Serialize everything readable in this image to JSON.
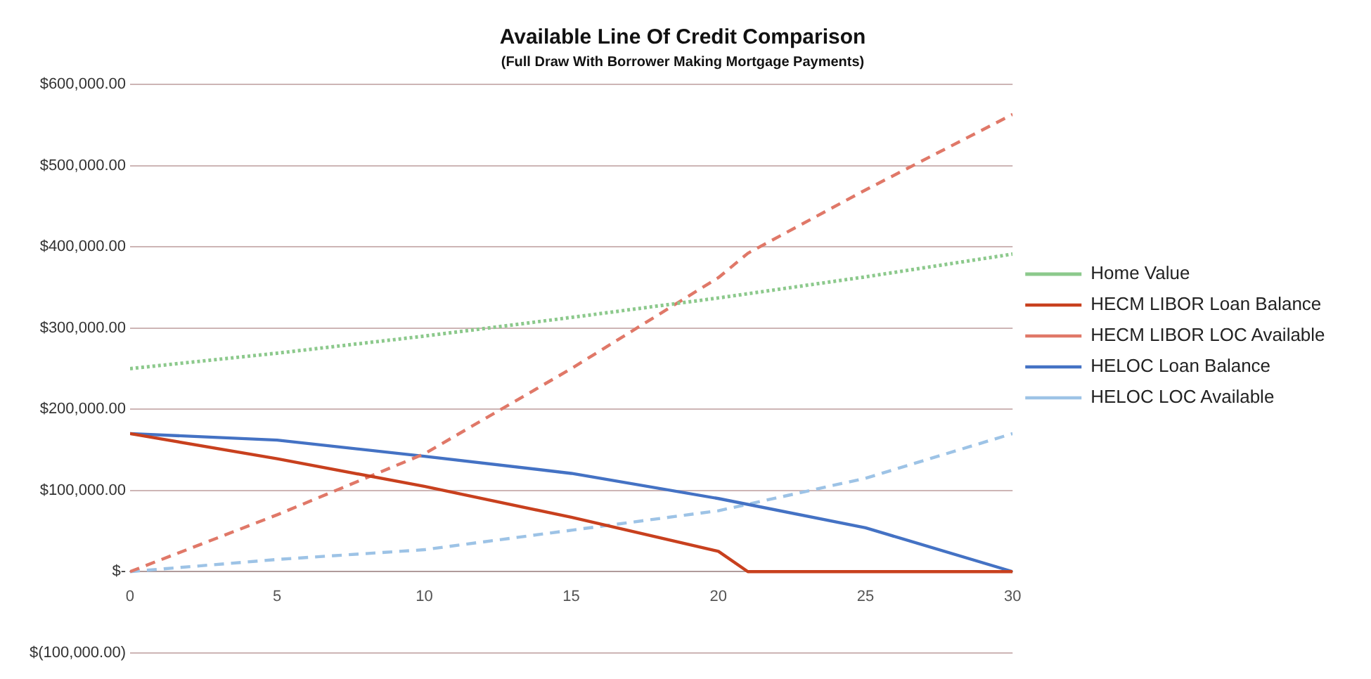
{
  "chart_data": {
    "type": "line",
    "title": "Available Line Of Credit Comparison",
    "subtitle": "(Full Draw With Borrower Making Mortgage Payments)",
    "xlim": [
      0,
      30
    ],
    "xticks": [
      0,
      5,
      10,
      15,
      20,
      25,
      30
    ],
    "ylim": [
      -100000,
      600000
    ],
    "yticks": [
      {
        "value": -100000,
        "label": "$(100,000.00)"
      },
      {
        "value": 0,
        "label": "$-"
      },
      {
        "value": 100000,
        "label": "$100,000.00"
      },
      {
        "value": 200000,
        "label": "$200,000.00"
      },
      {
        "value": 300000,
        "label": "$300,000.00"
      },
      {
        "value": 400000,
        "label": "$400,000.00"
      },
      {
        "value": 500000,
        "label": "$500,000.00"
      },
      {
        "value": 600000,
        "label": "$600,000.00"
      }
    ],
    "grid": "y",
    "legend": "right",
    "marker": "none",
    "series": [
      {
        "name": "Home Value",
        "color": "#8cc98c",
        "line_style": "dotted",
        "x": [
          0,
          5,
          10,
          15,
          20,
          25,
          30
        ],
        "values": [
          250000,
          269000,
          290000,
          313000,
          337000,
          363000,
          391000
        ]
      },
      {
        "name": "HECM LIBOR Loan Balance",
        "color": "#c8401e",
        "line_style": "solid",
        "x": [
          0,
          5,
          10,
          15,
          20,
          21,
          30
        ],
        "values": [
          170000,
          139000,
          105000,
          67000,
          25000,
          0,
          0
        ]
      },
      {
        "name": "HECM LIBOR LOC Available",
        "color": "#e07868",
        "line_style": "dashed",
        "x": [
          0,
          5,
          10,
          15,
          20,
          21,
          25,
          30
        ],
        "values": [
          0,
          70000,
          145000,
          250000,
          362000,
          392000,
          470000,
          563000
        ]
      },
      {
        "name": "HELOC Loan Balance",
        "color": "#4472c4",
        "line_style": "solid",
        "x": [
          0,
          5,
          10,
          15,
          20,
          25,
          30
        ],
        "values": [
          170000,
          162000,
          142000,
          121000,
          90000,
          54000,
          0
        ]
      },
      {
        "name": "HELOC LOC Available",
        "color": "#9dc3e6",
        "line_style": "dashed",
        "x": [
          0,
          5,
          10,
          15,
          20,
          25,
          30
        ],
        "values": [
          0,
          15000,
          27000,
          51000,
          75000,
          115000,
          170000
        ]
      }
    ]
  }
}
